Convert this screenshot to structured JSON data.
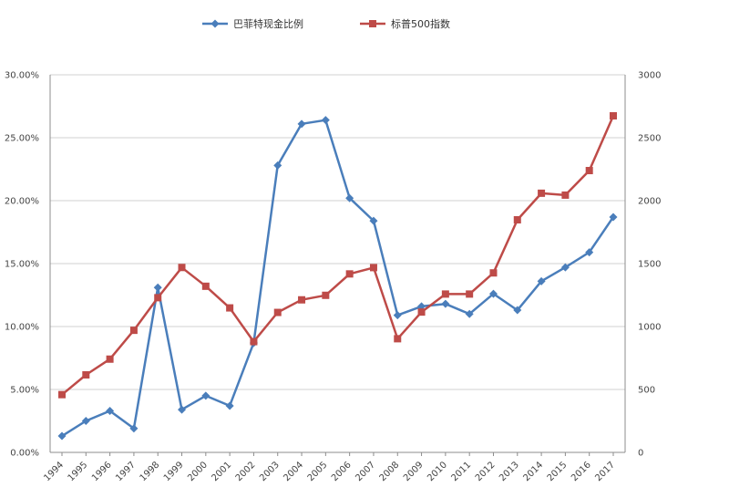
{
  "chart_data": {
    "type": "line",
    "title": "",
    "categories": [
      "1994",
      "1995",
      "1996",
      "1997",
      "1998",
      "1999",
      "2000",
      "2001",
      "2002",
      "2003",
      "2004",
      "2005",
      "2006",
      "2007",
      "2008",
      "2009",
      "2010",
      "2011",
      "2012",
      "2013",
      "2014",
      "2015",
      "2016",
      "2017"
    ],
    "y_left": {
      "ticks": [
        "0.00%",
        "5.00%",
        "10.00%",
        "15.00%",
        "20.00%",
        "25.00%",
        "30.00%"
      ],
      "range": [
        0,
        30
      ],
      "unit": "%"
    },
    "y_right": {
      "ticks": [
        "0",
        "500",
        "1000",
        "1500",
        "2000",
        "2500",
        "3000"
      ],
      "range": [
        0,
        3000
      ]
    },
    "grid": "horizontal",
    "legend_position": "top",
    "series": [
      {
        "name": "巴菲特现金比例",
        "axis": "left",
        "color": "#4a7ebb",
        "marker": "diamond",
        "values": [
          1.3,
          2.5,
          3.3,
          1.9,
          13.1,
          3.4,
          4.5,
          3.7,
          8.7,
          22.8,
          26.1,
          26.4,
          20.2,
          18.4,
          10.9,
          11.6,
          11.8,
          11.0,
          12.6,
          11.3,
          13.6,
          14.7,
          15.9,
          18.7
        ]
      },
      {
        "name": "标普500指数",
        "axis": "right",
        "color": "#be4b48",
        "marker": "square",
        "values": [
          459,
          616,
          741,
          970,
          1229,
          1469,
          1320,
          1148,
          880,
          1112,
          1212,
          1248,
          1418,
          1468,
          903,
          1115,
          1258,
          1258,
          1426,
          1848,
          2059,
          2044,
          2239,
          2674
        ]
      }
    ]
  }
}
